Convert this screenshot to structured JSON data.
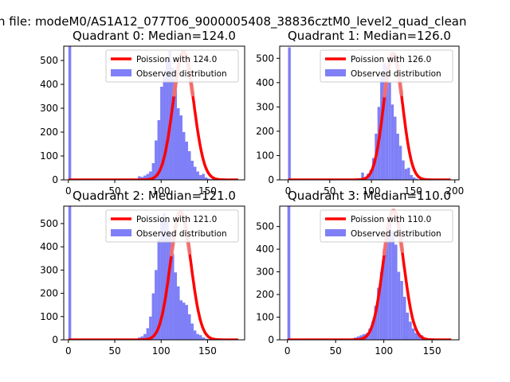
{
  "figure": {
    "suptitle": "n file: modeM0/AS1A12_077T06_9000005408_38836cztM0_level2_quad_clean"
  },
  "chart_data": [
    {
      "type": "bar",
      "title": "Quadrant 0: Median=124.0",
      "xlim": [
        -5,
        190
      ],
      "ylim": [
        0,
        560
      ],
      "xticks": [
        0,
        50,
        100,
        150
      ],
      "yticks": [
        0,
        100,
        200,
        300,
        400,
        500
      ],
      "legend": [
        "Poission with 124.0",
        "Observed distribution"
      ],
      "legend_position": "upper right",
      "poisson_mean": 124.0,
      "poisson_peak": 535,
      "curve_range": [
        0,
        183
      ],
      "hist_bin_width": 3,
      "hist_start": 0,
      "hist_values": [
        565,
        0,
        0,
        0,
        0,
        0,
        0,
        0,
        0,
        0,
        0,
        0,
        0,
        0,
        0,
        0,
        0,
        0,
        0,
        0,
        0,
        0,
        0,
        0,
        0,
        15,
        12,
        18,
        25,
        35,
        70,
        165,
        250,
        390,
        430,
        505,
        540,
        470,
        420,
        300,
        270,
        200,
        160,
        120,
        80,
        55,
        35,
        20,
        25,
        10,
        5,
        3,
        2,
        1,
        0,
        0,
        0,
        0,
        0,
        0,
        0,
        0,
        0
      ]
    },
    {
      "type": "bar",
      "title": "Quadrant 1: Median=126.0",
      "xlim": [
        -10,
        205
      ],
      "ylim": [
        0,
        550
      ],
      "xticks": [
        0,
        50,
        100,
        150,
        200
      ],
      "yticks": [
        0,
        100,
        200,
        300,
        400,
        500
      ],
      "legend": [
        "Poission with 126.0",
        "Observed distribution"
      ],
      "legend_position": "upper right",
      "poisson_mean": 126.0,
      "poisson_peak": 520,
      "curve_range": [
        0,
        195
      ],
      "hist_bin_width": 3.25,
      "hist_start": 0,
      "hist_values": [
        545,
        0,
        0,
        0,
        0,
        0,
        0,
        0,
        0,
        0,
        0,
        0,
        0,
        0,
        0,
        0,
        0,
        0,
        0,
        0,
        0,
        0,
        0,
        0,
        0,
        0,
        5,
        30,
        5,
        25,
        40,
        90,
        190,
        300,
        420,
        480,
        470,
        400,
        310,
        260,
        190,
        140,
        80,
        45,
        50,
        20,
        10,
        5,
        0,
        0,
        0,
        0,
        0,
        0,
        0,
        0,
        0,
        0,
        0,
        0
      ]
    },
    {
      "type": "bar",
      "title": "Quadrant 2: Median=121.0",
      "xlim": [
        -5,
        190
      ],
      "ylim": [
        0,
        575
      ],
      "xticks": [
        0,
        50,
        100,
        150
      ],
      "yticks": [
        0,
        100,
        200,
        300,
        400,
        500
      ],
      "legend": [
        "Poission with 121.0",
        "Observed distribution"
      ],
      "legend_position": "upper right",
      "poisson_mean": 121.0,
      "poisson_peak": 550,
      "curve_range": [
        0,
        183
      ],
      "hist_bin_width": 3,
      "hist_start": 0,
      "hist_values": [
        575,
        0,
        0,
        0,
        0,
        0,
        0,
        0,
        0,
        0,
        0,
        0,
        0,
        0,
        0,
        0,
        0,
        0,
        0,
        0,
        0,
        0,
        0,
        0,
        0,
        10,
        15,
        25,
        50,
        100,
        200,
        300,
        430,
        520,
        545,
        510,
        460,
        370,
        290,
        230,
        170,
        160,
        150,
        110,
        70,
        40,
        25,
        20,
        10,
        5,
        3,
        2,
        0,
        0,
        0,
        0,
        0,
        0,
        0,
        0,
        0,
        0,
        0
      ]
    },
    {
      "type": "bar",
      "title": "Quadrant 3: Median=110.0",
      "xlim": [
        -8,
        178
      ],
      "ylim": [
        0,
        590
      ],
      "xticks": [
        0,
        50,
        100,
        150
      ],
      "yticks": [
        0,
        100,
        200,
        300,
        400,
        500
      ],
      "legend": [
        "Poission with 110.0",
        "Observed distribution"
      ],
      "legend_position": "upper right",
      "poisson_mean": 110.0,
      "poisson_peak": 570,
      "curve_range": [
        0,
        170
      ],
      "hist_bin_width": 3,
      "hist_start": 0,
      "hist_values": [
        590,
        0,
        0,
        0,
        0,
        0,
        0,
        0,
        0,
        0,
        0,
        0,
        0,
        0,
        0,
        0,
        0,
        0,
        0,
        0,
        0,
        3,
        5,
        10,
        15,
        20,
        25,
        30,
        50,
        80,
        150,
        230,
        300,
        400,
        500,
        540,
        480,
        420,
        300,
        260,
        190,
        120,
        80,
        50,
        30,
        25,
        20,
        10,
        5,
        3,
        0,
        0,
        0,
        0,
        0,
        0,
        0,
        0,
        0
      ]
    }
  ],
  "style": {
    "hist_color": "#7f7ff7",
    "curve_color": "#ff0000",
    "curve_peak_color": "#f08080"
  }
}
